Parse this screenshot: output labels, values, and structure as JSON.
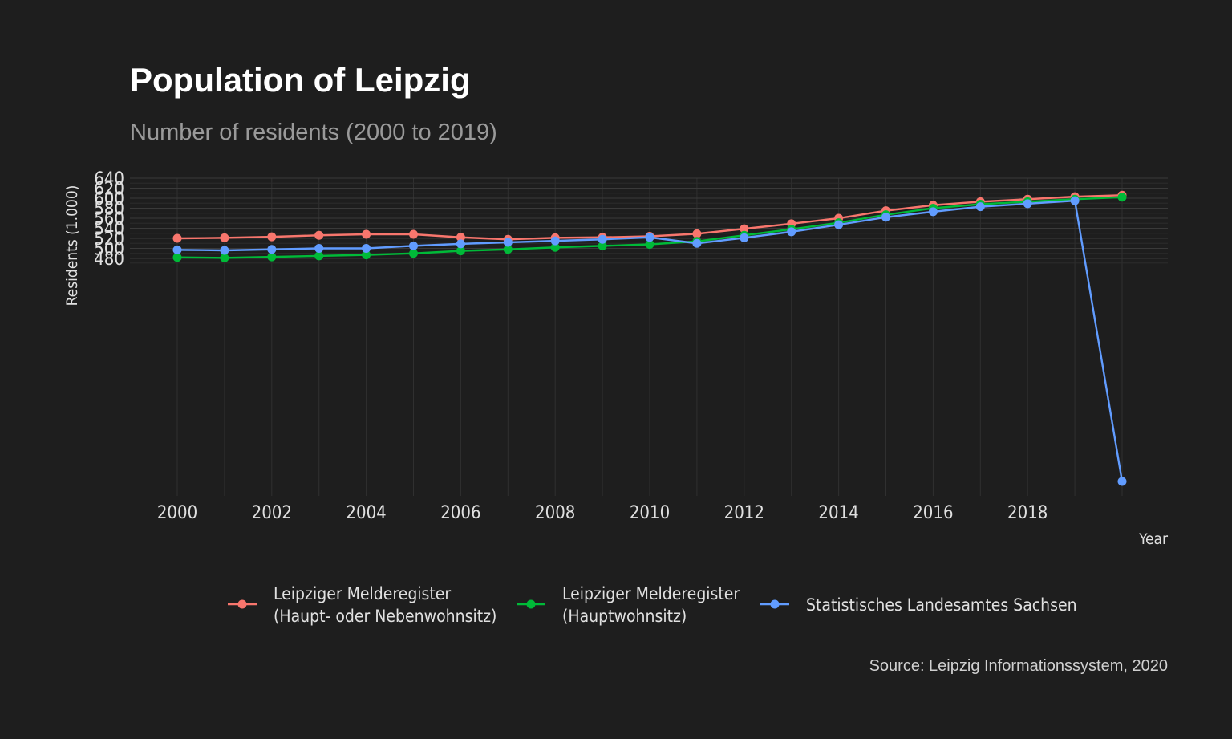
{
  "chart_data": {
    "type": "line",
    "title": "Population of Leipzig",
    "subtitle": "Number of residents (2000 to 2019)",
    "xlabel": "Year",
    "ylabel": "Residents (1.000)",
    "caption": "Source: Leipzig Informationssystem, 2020",
    "x": [
      2000,
      2001,
      2002,
      2003,
      2004,
      2005,
      2006,
      2007,
      2008,
      2009,
      2010,
      2011,
      2012,
      2013,
      2014,
      2015,
      2016,
      2017,
      2018,
      2019,
      2020
    ],
    "x_tick_labels": [
      "2000",
      "2002",
      "2004",
      "2006",
      "2008",
      "2010",
      "2012",
      "2014",
      "2016",
      "2018"
    ],
    "y_tick_labels": [
      "480",
      "500",
      "520",
      "540",
      "560",
      "580",
      "600",
      "620",
      "640"
    ],
    "grid": true,
    "legend_position": "bottom",
    "series": [
      {
        "name": "Leipziger Melderegister (Haupt- oder Nebenwohnsitz)",
        "legend_lines": [
          "Leipziger Melderegister",
          "(Haupt- oder Nebenwohnsitz)"
        ],
        "color": "#f8766d",
        "values": [
          520,
          521,
          523,
          526,
          528,
          528,
          522,
          518,
          521,
          522,
          524,
          529,
          539,
          549,
          560,
          575,
          586,
          593,
          598,
          603,
          606
        ]
      },
      {
        "name": "Leipziger Melderegister (Hauptwohnsitz)",
        "legend_lines": [
          "Leipziger Melderegister",
          "(Hauptwohnsitz)"
        ],
        "color": "#00ba38",
        "values": [
          482,
          481,
          483,
          485,
          487,
          490,
          495,
          498,
          502,
          505,
          508,
          514,
          526,
          538,
          551,
          567,
          580,
          588,
          593,
          598,
          602
        ]
      },
      {
        "name": "Statistisches Landesamtes Sachsen",
        "legend_lines": [
          "Statistisches Landesamtes Sachsen"
        ],
        "color": "#619cff",
        "values": [
          497,
          496,
          498,
          500,
          500,
          505,
          509,
          512,
          515,
          518,
          522,
          510,
          521,
          533,
          547,
          562,
          573,
          583,
          589,
          595,
          0
        ]
      }
    ]
  }
}
